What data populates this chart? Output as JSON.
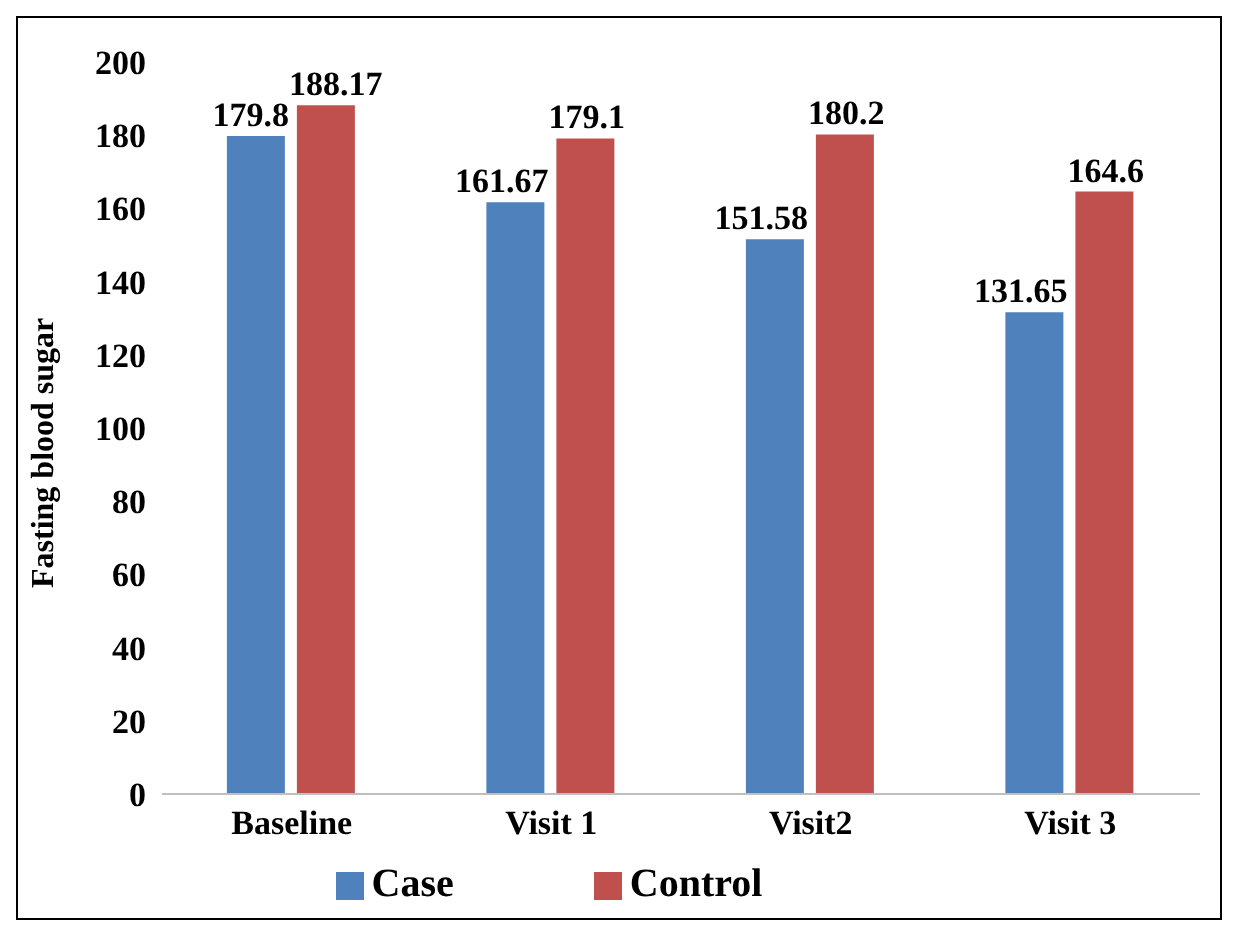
{
  "chart_data": {
    "type": "bar",
    "ylabel": "Fasting blood sugar",
    "categories": [
      "Baseline",
      "Visit 1",
      "Visit2",
      "Visit 3"
    ],
    "series": [
      {
        "name": "Case",
        "color": "#4f81bd",
        "values": [
          179.8,
          161.67,
          151.58,
          131.65
        ]
      },
      {
        "name": "Control",
        "color": "#c0504d",
        "values": [
          188.17,
          179.1,
          180.2,
          164.6
        ]
      }
    ],
    "ylim": [
      0,
      200
    ],
    "yticks": [
      0,
      20,
      40,
      60,
      80,
      100,
      120,
      140,
      160,
      180,
      200
    ],
    "data_labels": true,
    "legend": "bottom",
    "grid": false
  }
}
